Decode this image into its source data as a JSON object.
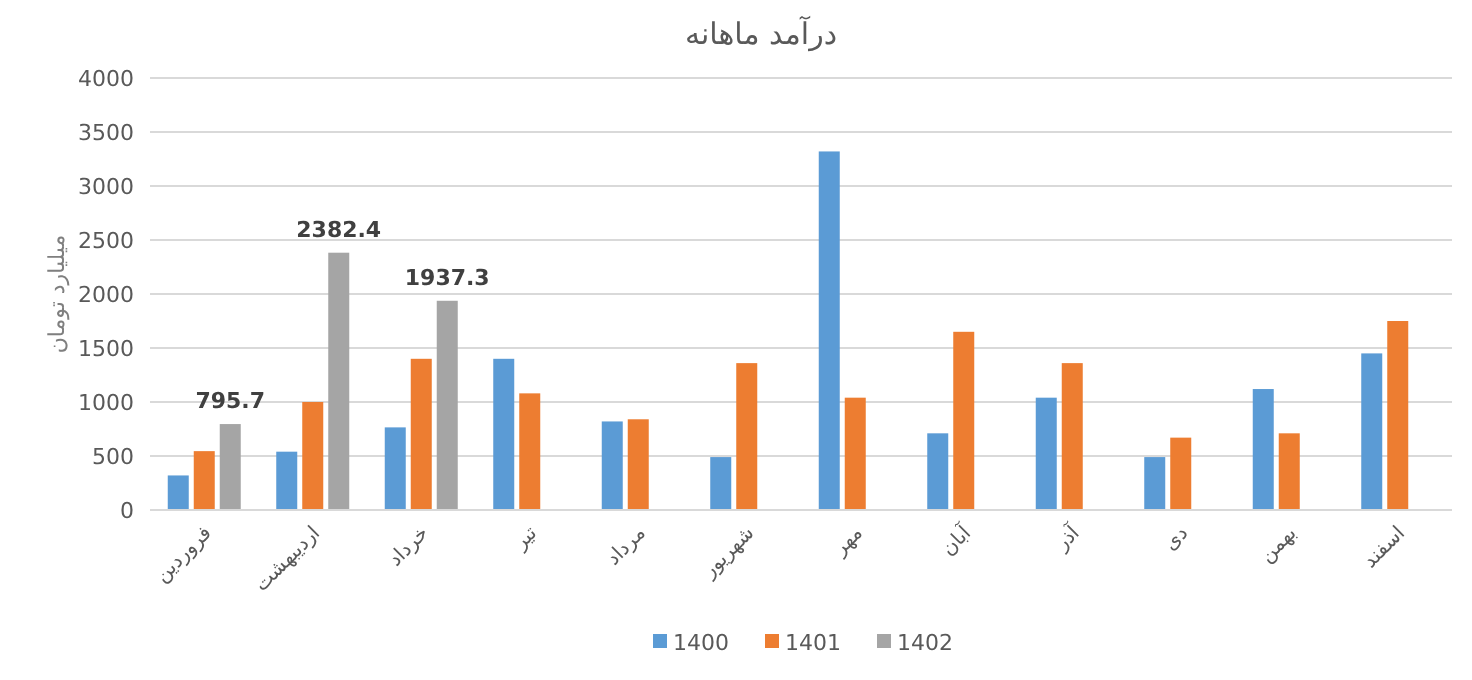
{
  "chart_data": {
    "type": "bar",
    "title": "درآمد ماهانه",
    "ylabel": "میلیارد تومان",
    "categories": [
      "فروردین",
      "اردیبهشت",
      "خرداد",
      "تیر",
      "مرداد",
      "شهریور",
      "مهر",
      "آبان",
      "آذر",
      "دی",
      "بهمن",
      "اسفند"
    ],
    "series": [
      {
        "name": "1400",
        "color": "#5b9bd5",
        "values": [
          320,
          540,
          765,
          1400,
          820,
          490,
          3320,
          710,
          1040,
          490,
          1120,
          1450
        ]
      },
      {
        "name": "1401",
        "color": "#ed7d31",
        "values": [
          545,
          1000,
          1400,
          1080,
          840,
          1360,
          1040,
          1650,
          1360,
          670,
          710,
          1750
        ]
      },
      {
        "name": "1402",
        "color": "#a5a5a5",
        "values": [
          795.7,
          2382.4,
          1937.3,
          null,
          null,
          null,
          null,
          null,
          null,
          null,
          null,
          null
        ],
        "value_labels": [
          "795.7",
          "2382.4",
          "1937.3",
          null,
          null,
          null,
          null,
          null,
          null,
          null,
          null,
          null
        ]
      }
    ],
    "ylim": [
      0,
      4000
    ],
    "yticks": [
      0,
      500,
      1000,
      1500,
      2000,
      2500,
      3000,
      3500,
      4000
    ],
    "grid": "y",
    "legend": "bottom"
  }
}
